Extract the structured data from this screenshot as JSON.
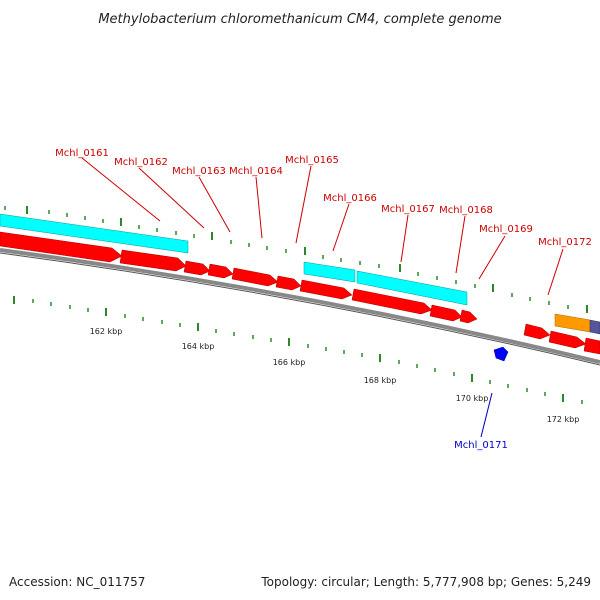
{
  "title": "Methylobacterium chloromethanicum CM4, complete genome",
  "footer": {
    "accession": "Accession: NC_011757",
    "summary": "Topology: circular; Length: 5,777,908 bp; Genes: 5,249"
  },
  "colors": {
    "plus_strand_gene": "#ff0000",
    "cds_feature": "#00ffff",
    "minus_strand_gene": "#0000ff",
    "other_feature": "#ff9900",
    "other_feature_2": "#555599",
    "backbone": "#888888",
    "ticks": "#2a8a2a",
    "plus_label": "#cc0000",
    "minus_label": "#0000cc"
  },
  "gene_labels": [
    {
      "name": "Mchl_0161",
      "strand": "plus"
    },
    {
      "name": "Mchl_0162",
      "strand": "plus"
    },
    {
      "name": "Mchl_0163",
      "strand": "plus"
    },
    {
      "name": "Mchl_0164",
      "strand": "plus"
    },
    {
      "name": "Mchl_0165",
      "strand": "plus"
    },
    {
      "name": "Mchl_0166",
      "strand": "plus"
    },
    {
      "name": "Mchl_0167",
      "strand": "plus"
    },
    {
      "name": "Mchl_0168",
      "strand": "plus"
    },
    {
      "name": "Mchl_0169",
      "strand": "plus"
    },
    {
      "name": "Mchl_0172",
      "strand": "plus"
    },
    {
      "name": "Mchl_0171",
      "strand": "minus"
    }
  ],
  "ruler_labels": [
    "162 kbp",
    "164 kbp",
    "166 kbp",
    "168 kbp",
    "170 kbp",
    "172 kbp"
  ]
}
